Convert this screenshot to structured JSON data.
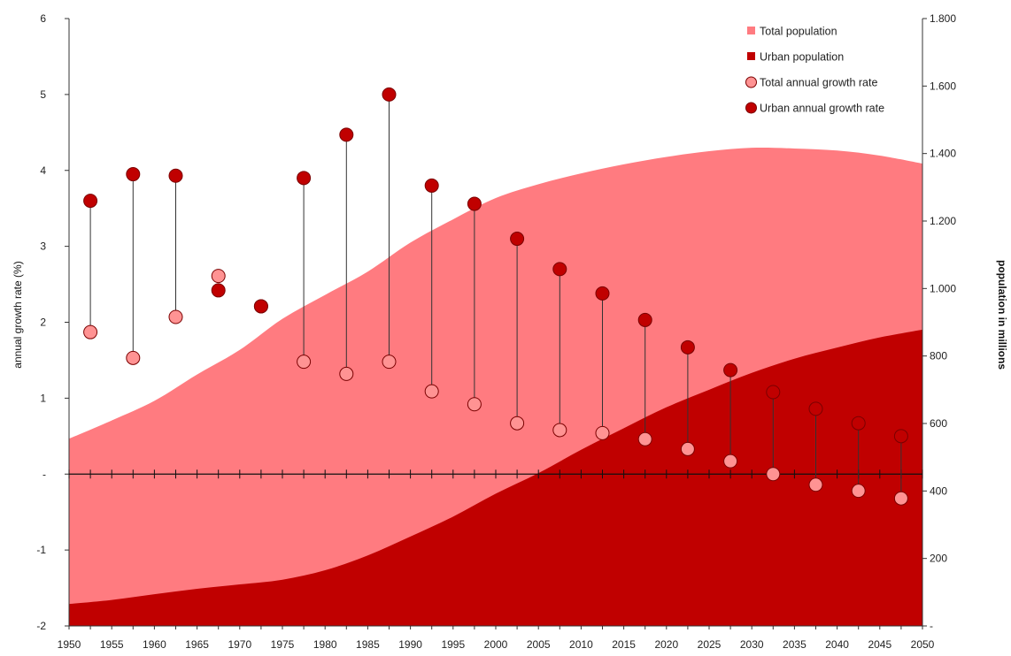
{
  "chart_data": {
    "type": "area",
    "title": "",
    "xlabel": "",
    "ylabel": "annual growth rate (%)",
    "y2label": "population in millions",
    "xlim": [
      1950,
      2050
    ],
    "ylim": [
      -2,
      6
    ],
    "y2lim": [
      0,
      1800
    ],
    "grid": false,
    "legend": "top-right",
    "x_ticks": [
      "1950",
      "1955",
      "1960",
      "1965",
      "1970",
      "1975",
      "1980",
      "1985",
      "1990",
      "1995",
      "2000",
      "2005",
      "2010",
      "2015",
      "2020",
      "2025",
      "2030",
      "2035",
      "2040",
      "2045",
      "2050"
    ],
    "y_ticks": [
      {
        "value": 6,
        "label": "6"
      },
      {
        "value": 5,
        "label": "5"
      },
      {
        "value": 4,
        "label": "4"
      },
      {
        "value": 3,
        "label": "3"
      },
      {
        "value": 2,
        "label": "2"
      },
      {
        "value": 1,
        "label": "1"
      },
      {
        "value": 0,
        "label": "-"
      },
      {
        "value": -1,
        "label": "-1"
      },
      {
        "value": -2,
        "label": "-2"
      }
    ],
    "y2_ticks": [
      {
        "value": 1800,
        "label": "1.800"
      },
      {
        "value": 1600,
        "label": "1.600"
      },
      {
        "value": 1400,
        "label": "1.400"
      },
      {
        "value": 1200,
        "label": "1.200"
      },
      {
        "value": 1000,
        "label": "1.000"
      },
      {
        "value": 800,
        "label": "800"
      },
      {
        "value": 600,
        "label": "600"
      },
      {
        "value": 400,
        "label": "400"
      },
      {
        "value": 200,
        "label": "200"
      },
      {
        "value": 0,
        "label": "-"
      }
    ],
    "colors": {
      "total_population": "#ff7b80",
      "urban_population": "#c00000",
      "total_rate_marker": "#ff9393",
      "urban_rate_marker": "#c00000",
      "marker_stroke": "#7a0000",
      "axis": "#333333"
    },
    "legend_entries": [
      {
        "name": "Total population",
        "symbol": "square",
        "color": "#ff7b80"
      },
      {
        "name": "Urban population",
        "symbol": "square",
        "color": "#c00000"
      },
      {
        "name": "Total annual growth rate",
        "symbol": "circle",
        "color": "#ff9393"
      },
      {
        "name": "Urban annual growth rate",
        "symbol": "circle",
        "color": "#c00000"
      }
    ],
    "area_series": [
      {
        "name": "Total population",
        "axis": "right",
        "x": [
          1950,
          1955,
          1960,
          1965,
          1970,
          1975,
          1980,
          1985,
          1990,
          1995,
          2000,
          2005,
          2010,
          2015,
          2020,
          2025,
          2030,
          2035,
          2040,
          2045,
          2050
        ],
        "values": [
          555,
          609,
          667,
          745,
          818,
          910,
          981,
          1050,
          1136,
          1205,
          1268,
          1309,
          1341,
          1368,
          1390,
          1407,
          1417,
          1415,
          1409,
          1394,
          1370
        ]
      },
      {
        "name": "Urban population",
        "axis": "right",
        "x": [
          1950,
          1955,
          1960,
          1965,
          1970,
          1975,
          1980,
          1985,
          1990,
          1995,
          2000,
          2005,
          2010,
          2015,
          2020,
          2025,
          2030,
          2035,
          2040,
          2045,
          2050
        ],
        "values": [
          65,
          77,
          94,
          110,
          123,
          137,
          165,
          209,
          265,
          324,
          392,
          453,
          522,
          586,
          648,
          700,
          750,
          792,
          825,
          855,
          878
        ]
      }
    ],
    "rate_series": [
      {
        "name": "Total annual growth rate",
        "axis": "left",
        "x": [
          1952.5,
          1957.5,
          1962.5,
          1967.5,
          1972.5,
          1977.5,
          1982.5,
          1987.5,
          1992.5,
          1997.5,
          2002.5,
          2007.5,
          2012.5,
          2017.5,
          2022.5,
          2027.5,
          2032.5,
          2037.5,
          2042.5,
          2047.5
        ],
        "values": [
          1.87,
          1.53,
          2.07,
          2.61,
          2.21,
          1.48,
          1.32,
          1.48,
          1.09,
          0.92,
          0.67,
          0.58,
          0.54,
          0.46,
          0.33,
          0.17,
          0.0,
          -0.14,
          -0.22,
          -0.32
        ]
      },
      {
        "name": "Urban annual growth rate",
        "axis": "left",
        "x": [
          1952.5,
          1957.5,
          1962.5,
          1967.5,
          1972.5,
          1977.5,
          1982.5,
          1987.5,
          1992.5,
          1997.5,
          2002.5,
          2007.5,
          2012.5,
          2017.5,
          2022.5,
          2027.5,
          2032.5,
          2037.5,
          2042.5,
          2047.5
        ],
        "values": [
          3.6,
          3.95,
          3.93,
          2.42,
          2.21,
          3.9,
          4.47,
          5.0,
          3.8,
          3.56,
          3.1,
          2.7,
          2.38,
          2.03,
          1.67,
          1.37,
          1.08,
          0.86,
          0.67,
          0.5
        ]
      }
    ]
  }
}
